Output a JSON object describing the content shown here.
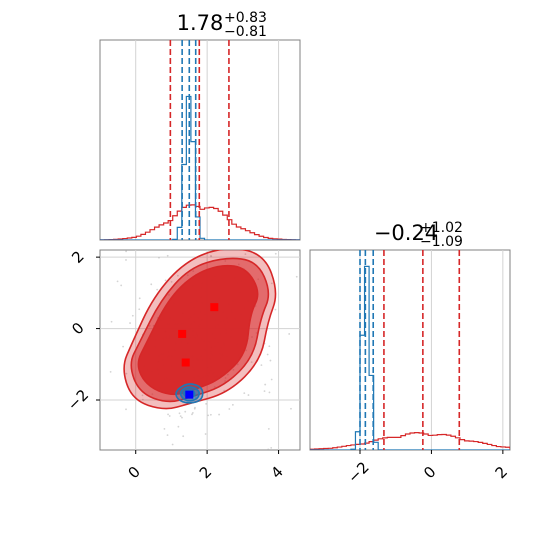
{
  "chart_data": {
    "type": "corner",
    "parameters": [
      "x",
      "y"
    ],
    "colors": {
      "broad": "#d62728",
      "narrow": "#1f77b4",
      "broad_point": "#ff0000",
      "narrow_point": "#0000ff",
      "grid": "#d3d3d3"
    },
    "grid": true,
    "axes": {
      "x": {
        "range": [
          -1.0,
          4.6
        ],
        "ticks": [
          0,
          2,
          4
        ],
        "tick_labels": [
          "0",
          "2",
          "4"
        ]
      },
      "y": {
        "range": [
          -3.4,
          2.2
        ],
        "ticks": [
          -2,
          0,
          2
        ],
        "tick_labels": [
          "−2",
          "0",
          "2"
        ]
      }
    },
    "marginals": [
      {
        "parameter": "x",
        "title": {
          "median": "1.78",
          "upper": "+0.83",
          "lower": "−0.81"
        },
        "broad": {
          "quantiles": [
            0.97,
            1.78,
            2.61
          ],
          "mean": 1.78,
          "sd": 0.82,
          "peak": 0.17
        },
        "narrow": {
          "quantiles": [
            1.3,
            1.5,
            1.68
          ],
          "mean": 1.5,
          "sd": 0.12,
          "peak": 0.78
        }
      },
      {
        "parameter": "y",
        "title": {
          "median": "−0.24",
          "upper": "+1.02",
          "lower": "−1.09"
        },
        "broad": {
          "quantiles": [
            -1.33,
            -0.24,
            0.78
          ],
          "mean": -0.24,
          "sd": 1.25,
          "peak": 0.08
        },
        "narrow": {
          "quantiles": [
            -2.0,
            -1.85,
            -1.63
          ],
          "mean": -1.83,
          "sd": 0.11,
          "peak": 0.85
        }
      }
    ],
    "joint": {
      "broad_levels": [
        [
          [
            1.7,
            -1.7
          ],
          [
            2.4,
            -1.4
          ],
          [
            3.1,
            -0.7
          ],
          [
            3.2,
            0.4
          ],
          [
            3.5,
            1.0
          ],
          [
            3.1,
            1.7
          ],
          [
            2.4,
            1.8
          ],
          [
            1.6,
            1.5
          ],
          [
            0.9,
            0.8
          ],
          [
            0.3,
            -0.4
          ],
          [
            0.0,
            -1.0
          ],
          [
            0.3,
            -1.6
          ],
          [
            1.0,
            -1.9
          ]
        ],
        [
          [
            1.6,
            -1.9
          ],
          [
            2.5,
            -1.6
          ],
          [
            3.3,
            -0.8
          ],
          [
            3.5,
            0.3
          ],
          [
            3.8,
            1.0
          ],
          [
            3.4,
            1.9
          ],
          [
            2.5,
            2.0
          ],
          [
            1.5,
            1.7
          ],
          [
            0.7,
            0.8
          ],
          [
            0.1,
            -0.4
          ],
          [
            -0.2,
            -1.0
          ],
          [
            0.1,
            -1.8
          ],
          [
            0.9,
            -2.1
          ]
        ],
        [
          [
            1.5,
            -2.1
          ],
          [
            2.6,
            -1.8
          ],
          [
            3.5,
            -0.9
          ],
          [
            3.7,
            0.2
          ],
          [
            4.0,
            1.0
          ],
          [
            3.6,
            2.1
          ],
          [
            2.5,
            2.3
          ],
          [
            1.4,
            1.9
          ],
          [
            0.5,
            0.9
          ],
          [
            -0.1,
            -0.4
          ],
          [
            -0.4,
            -1.1
          ],
          [
            -0.1,
            -2.0
          ],
          [
            0.8,
            -2.3
          ]
        ]
      ],
      "narrow_levels": [
        [
          [
            1.45,
            -1.95
          ],
          [
            1.65,
            -1.9
          ],
          [
            1.65,
            -1.75
          ],
          [
            1.45,
            -1.7
          ],
          [
            1.3,
            -1.8
          ]
        ],
        [
          [
            1.4,
            -2.05
          ],
          [
            1.75,
            -1.98
          ],
          [
            1.8,
            -1.72
          ],
          [
            1.45,
            -1.6
          ],
          [
            1.2,
            -1.8
          ]
        ],
        [
          [
            1.3,
            -2.1
          ],
          [
            1.85,
            -2.05
          ],
          [
            1.9,
            -1.65
          ],
          [
            1.45,
            -1.5
          ],
          [
            1.05,
            -1.8
          ]
        ]
      ],
      "broad_points": [
        [
          2.2,
          0.6
        ],
        [
          1.3,
          -0.15
        ],
        [
          1.4,
          -0.95
        ]
      ],
      "narrow_point": [
        1.5,
        -1.85
      ]
    }
  }
}
